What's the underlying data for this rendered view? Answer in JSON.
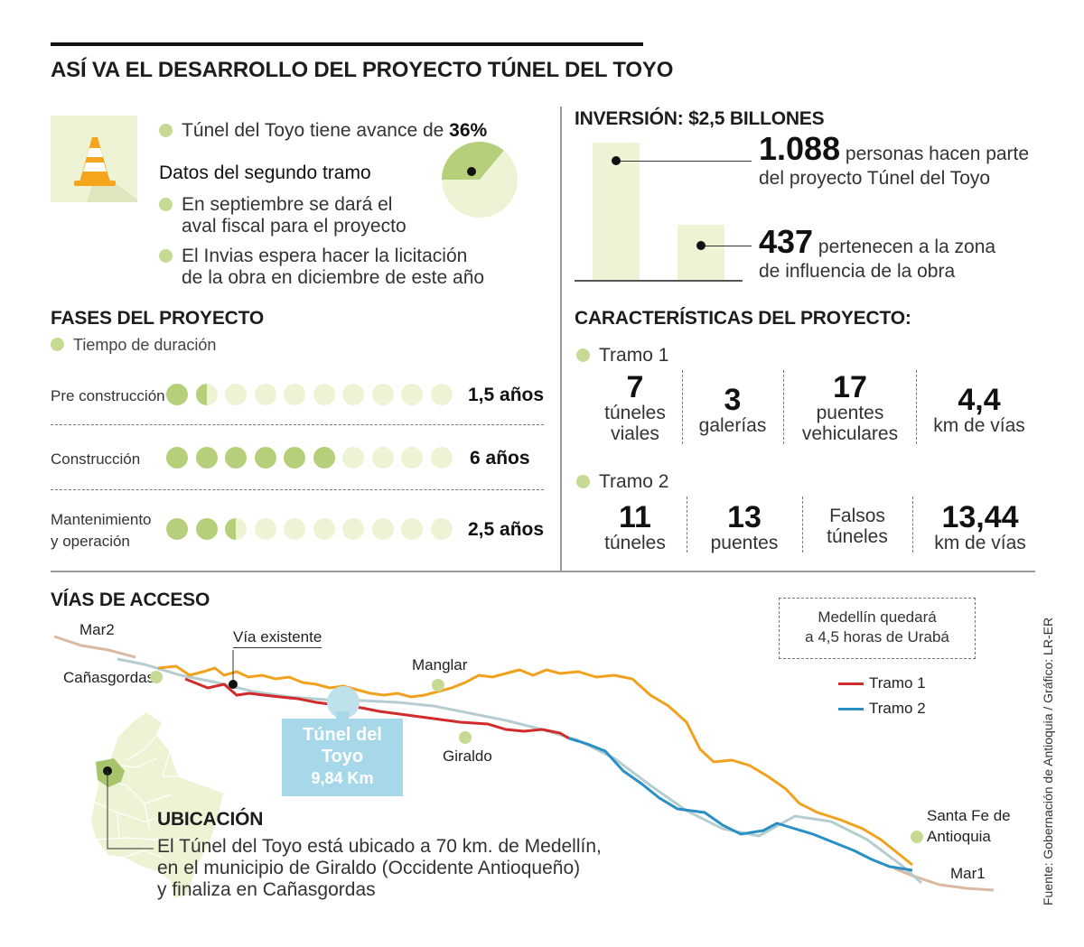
{
  "title": "ASÍ VA EL DESARROLLO DEL PROYECTO TÚNEL DEL TOYO",
  "progress": {
    "icon": "traffic-cone-icon",
    "text_prefix": "Túnel del Toyo tiene avance de ",
    "percent_label": "36%",
    "percent": 36,
    "second_stage_title": "Datos del segundo tramo",
    "bullet1_line1": "En septiembre se dará el",
    "bullet1_line2": "aval fiscal para el proyecto",
    "bullet2_line1": "El Invias espera hacer la licitación",
    "bullet2_line2": "de la obra en diciembre de este año"
  },
  "investment": {
    "title": "INVERSIÓN: $2,5 BILLONES",
    "people_total": "1.088",
    "people_total_line1": " personas hacen parte",
    "people_total_line2": "del proyecto Túnel del Toyo",
    "people_local": "437",
    "people_local_line1": " pertenecen a la zona",
    "people_local_line2": "de  influencia de la obra",
    "bar_values": [
      1088,
      437
    ]
  },
  "phases": {
    "title": "FASES DEL PROYECTO",
    "legend": "Tiempo de duración",
    "rows": [
      {
        "label_line1": "Pre construcción",
        "label_line2": "",
        "duration": "1,5 años",
        "filled": 1.5
      },
      {
        "label_line1": "Construcción",
        "label_line2": "",
        "duration": "6 años",
        "filled": 6
      },
      {
        "label_line1": "Mantenimiento",
        "label_line2": "y operación",
        "duration": "2,5 años",
        "filled": 2.5
      }
    ]
  },
  "characteristics": {
    "title": "CARACTERÍSTICAS DEL PROYECTO:",
    "tramo1": {
      "label": "Tramo 1",
      "items": [
        {
          "num": "7",
          "line1": "túneles",
          "line2": "viales"
        },
        {
          "num": "3",
          "line1": "galerías",
          "line2": ""
        },
        {
          "num": "17",
          "line1": "puentes",
          "line2": "vehiculares"
        },
        {
          "num": "4,4",
          "line1": "km de vías",
          "line2": ""
        }
      ]
    },
    "tramo2": {
      "label": "Tramo 2",
      "items": [
        {
          "num": "11",
          "line1": "túneles",
          "line2": ""
        },
        {
          "num": "13",
          "line1": "puentes",
          "line2": ""
        },
        {
          "num": "",
          "line1": "Falsos",
          "line2": "túneles"
        },
        {
          "num": "13,44",
          "line1": "km de vías",
          "line2": ""
        }
      ]
    }
  },
  "access": {
    "title": "VÍAS DE ACCESO",
    "note_line1": "Medellín quedará",
    "note_line2": "a 4,5 horas de Urabá",
    "legend_tramo1": "Tramo 1",
    "legend_tramo2": "Tramo 2",
    "colors": {
      "tramo1": "#d12b2b",
      "tramo2": "#2a8fc4",
      "existing": "#f0a21e",
      "road": "#b5cdd0",
      "mar": "#d9b9a1"
    },
    "places": {
      "mar2": "Mar2",
      "canasgordas": "Cañasgordas",
      "via_existente": "Vía existente",
      "manglar": "Manglar",
      "giraldo": "Giraldo",
      "santafe_line1": "Santa Fe de",
      "santafe_line2": "Antioquia",
      "mar1": "Mar1"
    },
    "tunnel_line1": "Túnel del",
    "tunnel_line2": "Toyo",
    "tunnel_length": "9,84 Km",
    "location_title": "UBICACIÓN",
    "location_line1": "El Túnel del Toyo está ubicado a 70 km. de Medellín,",
    "location_line2": "en el municipio de Giraldo (Occidente Antioqueño)",
    "location_line3": "y finaliza en Cañasgordas"
  },
  "source": "Fuente: Gobernación de Antioquia / Gráfico: LR-ER"
}
